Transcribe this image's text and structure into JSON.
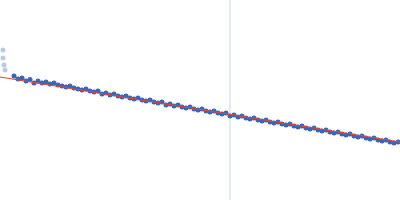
{
  "chart_data": {
    "type": "scatter",
    "tick_labels": false,
    "grid": false,
    "xlim": [
      0,
      400
    ],
    "ylim": [
      0,
      200
    ],
    "series": [
      {
        "type": "line",
        "color": "#d3dbea",
        "line_style": "solid",
        "x": [
          230,
          230
        ],
        "values": [
          0,
          200
        ]
      },
      {
        "type": "scatter",
        "color": "#b8cbe6",
        "marker": "circle",
        "x": [
          3,
          3,
          4,
          5
        ],
        "values": [
          150,
          142,
          135,
          130
        ]
      },
      {
        "type": "scatter",
        "color": "#3d66b2",
        "marker": "circle",
        "x": [
          14,
          18,
          22,
          26,
          30,
          34,
          38,
          42,
          46,
          50,
          54,
          58,
          62,
          66,
          70,
          74,
          78,
          82,
          86,
          90,
          94,
          98,
          102,
          106,
          110,
          114,
          118,
          122,
          126,
          130,
          134,
          138,
          142,
          146,
          150,
          154,
          158,
          162,
          166,
          170,
          174,
          178,
          182,
          186,
          190,
          194,
          198,
          202,
          206,
          210,
          214,
          218,
          222,
          226,
          230,
          234,
          238,
          242,
          246,
          250,
          254,
          258,
          262,
          266,
          270,
          274,
          278,
          282,
          286,
          290,
          294,
          298,
          302,
          306,
          310,
          314,
          318,
          322,
          326,
          330,
          334,
          338,
          342,
          346,
          350,
          354,
          358,
          362,
          366,
          370,
          374,
          378,
          382,
          386,
          390,
          394,
          398
        ],
        "values": [
          124,
          121,
          122,
          119,
          120.5,
          117,
          119,
          117,
          118,
          116,
          117,
          115,
          114,
          113,
          114,
          112,
          111,
          110,
          111,
          109,
          108,
          109,
          106,
          107,
          105,
          106,
          104,
          103,
          104,
          102,
          101,
          102,
          100,
          99,
          100,
          98,
          97,
          98,
          95,
          96,
          94,
          95,
          93,
          92,
          93,
          91,
          90,
          91,
          89,
          88,
          89,
          87,
          86,
          87,
          84,
          85,
          83,
          84,
          82,
          81,
          82,
          80,
          79,
          80,
          78,
          77,
          78,
          76,
          75,
          76,
          74,
          73,
          74,
          72,
          71,
          72,
          70,
          69,
          70,
          68,
          67,
          68,
          66,
          65,
          66,
          64,
          63,
          64,
          62,
          61,
          62,
          60,
          59,
          60,
          58,
          57,
          58
        ]
      },
      {
        "type": "line",
        "color": "#e0463a",
        "line_style": "solid",
        "x": [
          0,
          400
        ],
        "values": [
          123,
          58
        ]
      }
    ]
  }
}
